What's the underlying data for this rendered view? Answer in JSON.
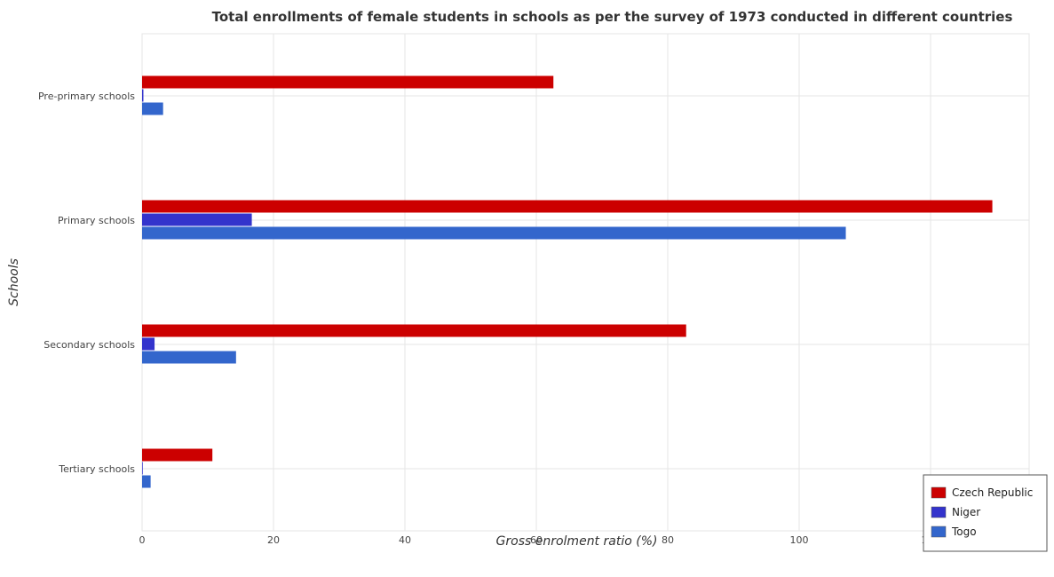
{
  "chart_data": {
    "type": "bar",
    "orientation": "horizontal",
    "title": "Total enrollments of female students in schools as per the survey of 1973 conducted in different countries",
    "xlabel": "Gross enrolment ratio (%)",
    "ylabel": "Schools",
    "categories": [
      "Pre-primary schools",
      "Primary schools",
      "Secondary schools",
      "Tertiary schools"
    ],
    "series": [
      {
        "name": "Czech Republic",
        "color": "#cc0000",
        "values": [
          62.6,
          129.4,
          82.8,
          10.7
        ]
      },
      {
        "name": "Niger",
        "color": "#3333cc",
        "values": [
          0.2,
          16.7,
          1.9,
          0.1
        ]
      },
      {
        "name": "Togo",
        "color": "#3366cc",
        "values": [
          3.2,
          107.1,
          14.3,
          1.3
        ]
      }
    ],
    "xlim": [
      0,
      135
    ],
    "xticks": [
      0,
      20,
      40,
      60,
      80,
      100,
      120
    ],
    "grid": true,
    "legend_position": "bottom-right"
  }
}
